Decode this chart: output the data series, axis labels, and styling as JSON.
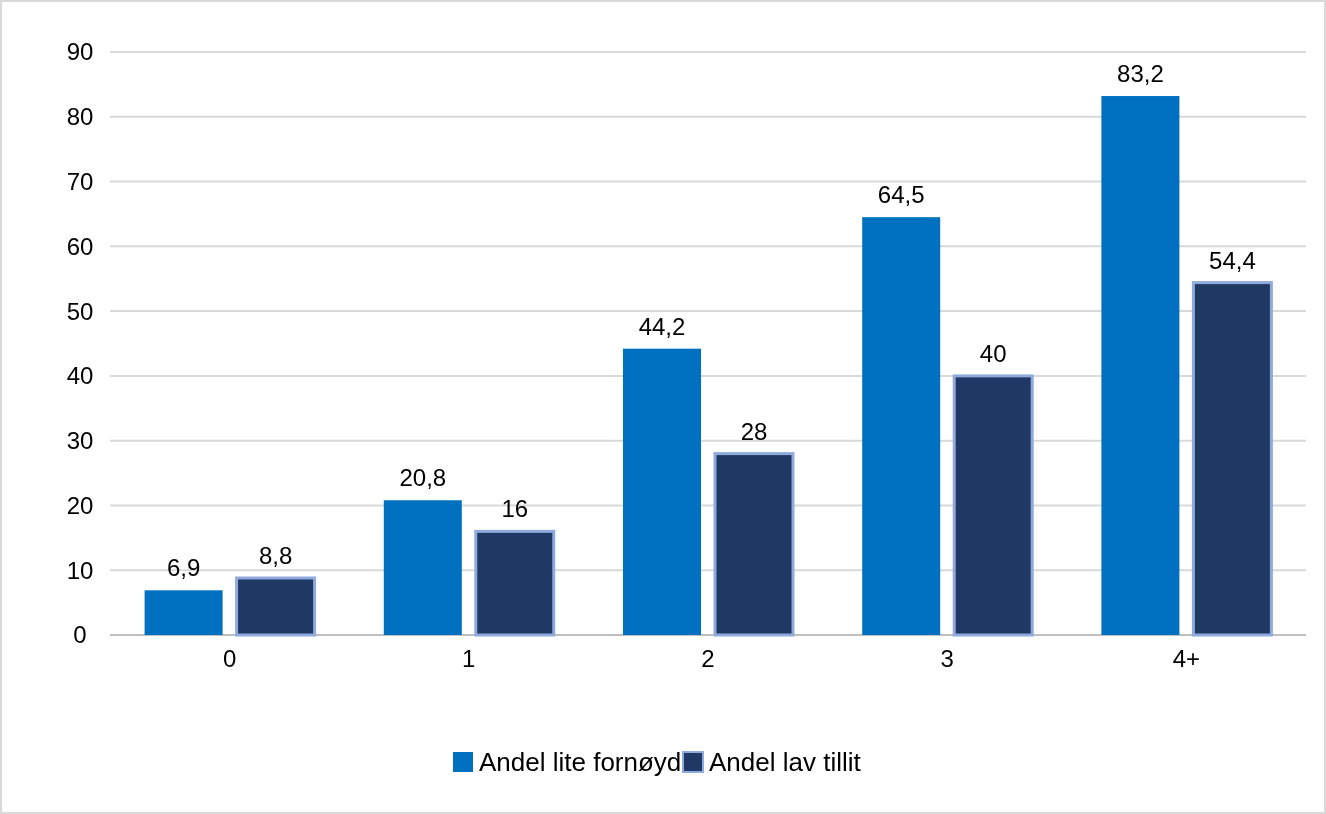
{
  "chart_data": {
    "type": "bar",
    "categories": [
      "0",
      "1",
      "2",
      "3",
      "4+"
    ],
    "series": [
      {
        "name": "Andel lite fornøyd",
        "color": "#0070c0",
        "values": [
          6.9,
          20.8,
          44.2,
          64.5,
          83.2
        ],
        "value_labels": [
          "6,9",
          "20,8",
          "44,2",
          "64,5",
          "83,2"
        ]
      },
      {
        "name": "Andel lav tillit",
        "color": "#1f3864",
        "values": [
          8.8,
          16,
          28,
          40,
          54.4
        ],
        "value_labels": [
          "8,8",
          "16",
          "28",
          "40",
          "54,4"
        ]
      }
    ],
    "ylim": [
      0,
      90
    ],
    "yticks": [
      0,
      10,
      20,
      30,
      40,
      50,
      60,
      70,
      80,
      90
    ],
    "grid": "y",
    "legend": "bottom"
  }
}
